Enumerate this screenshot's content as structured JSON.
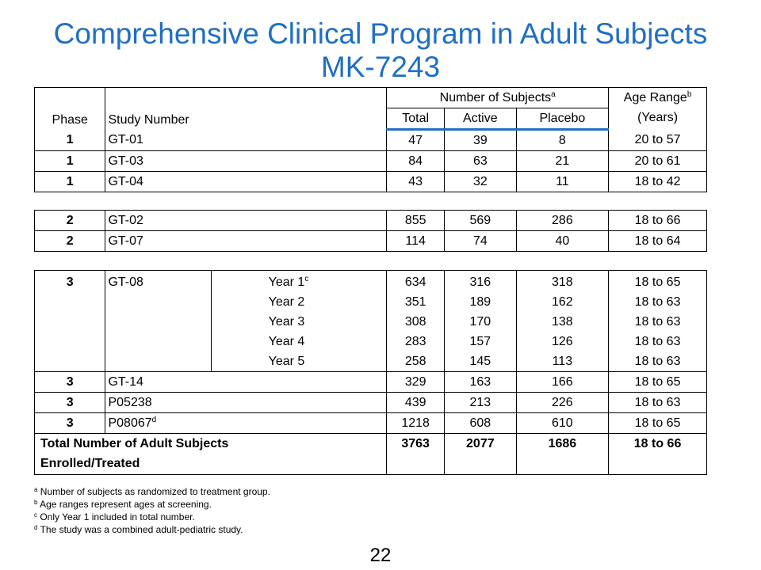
{
  "title": {
    "line1": "Comprehensive Clinical Program in Adult Subjects",
    "line2": "MK-7243"
  },
  "header": {
    "phase": "Phase",
    "study_number": "Study Number",
    "num_subjects": "Number  of Subjects",
    "num_subjects_sup": "a",
    "age_range": "Age Range",
    "age_range_sup": "b",
    "years": "(Years)",
    "total": "Total",
    "active": "Active",
    "placebo": "Placebo"
  },
  "phase1": [
    {
      "phase": "1",
      "study": "GT-01",
      "total": "47",
      "active": "39",
      "placebo": "8",
      "age": "20 to 57"
    },
    {
      "phase": "1",
      "study": "GT-03",
      "total": "84",
      "active": "63",
      "placebo": "21",
      "age": "20 to 61"
    },
    {
      "phase": "1",
      "study": "GT-04",
      "total": "43",
      "active": "32",
      "placebo": "11",
      "age": "18 to 42"
    }
  ],
  "phase2": [
    {
      "phase": "2",
      "study": "GT-02",
      "total": "855",
      "active": "569",
      "placebo": "286",
      "age": "18 to 66"
    },
    {
      "phase": "2",
      "study": "GT-07",
      "total": "114",
      "active": "74",
      "placebo": "40",
      "age": "18 to 64"
    }
  ],
  "gt08": {
    "phase": "3",
    "study": "GT-08",
    "year1_sup": "c",
    "years": [
      {
        "label": "Year 1",
        "total": "634",
        "active": "316",
        "placebo": "318",
        "age": "18 to 65"
      },
      {
        "label": "Year 2",
        "total": "351",
        "active": "189",
        "placebo": "162",
        "age": "18 to 63"
      },
      {
        "label": "Year 3",
        "total": "308",
        "active": "170",
        "placebo": "138",
        "age": "18 to 63"
      },
      {
        "label": "Year 4",
        "total": "283",
        "active": "157",
        "placebo": "126",
        "age": "18 to 63"
      },
      {
        "label": "Year 5",
        "total": "258",
        "active": "145",
        "placebo": "113",
        "age": "18 to 63"
      }
    ]
  },
  "phase3": [
    {
      "phase": "3",
      "study": "GT-14",
      "sup": "",
      "total": "329",
      "active": "163",
      "placebo": "166",
      "age": "18 to 65"
    },
    {
      "phase": "3",
      "study": "P05238",
      "sup": "",
      "total": "439",
      "active": "213",
      "placebo": "226",
      "age": "18 to 63"
    },
    {
      "phase": "3",
      "study": "P08067",
      "sup": "d",
      "total": "1218",
      "active": "608",
      "placebo": "610",
      "age": "18 to 65"
    }
  ],
  "total_row": {
    "label_line1": "Total Number of Adult Subjects",
    "label_line2": "Enrolled/Treated",
    "total": "3763",
    "active": "2077",
    "placebo": "1686",
    "age": "18 to 66"
  },
  "footnotes": [
    {
      "sup": "a",
      "text": "Number  of subjects as randomized to treatment group."
    },
    {
      "sup": "b",
      "text": "Age ranges represent ages at screening."
    },
    {
      "sup": "c",
      "text": "Only Year 1 included in total number."
    },
    {
      "sup": "d",
      "text": "The study was a combined adult-pediatric study."
    }
  ],
  "page_number": "22",
  "colors": {
    "title": "#1F6FC5",
    "header_rule": "#1F6FC5"
  }
}
